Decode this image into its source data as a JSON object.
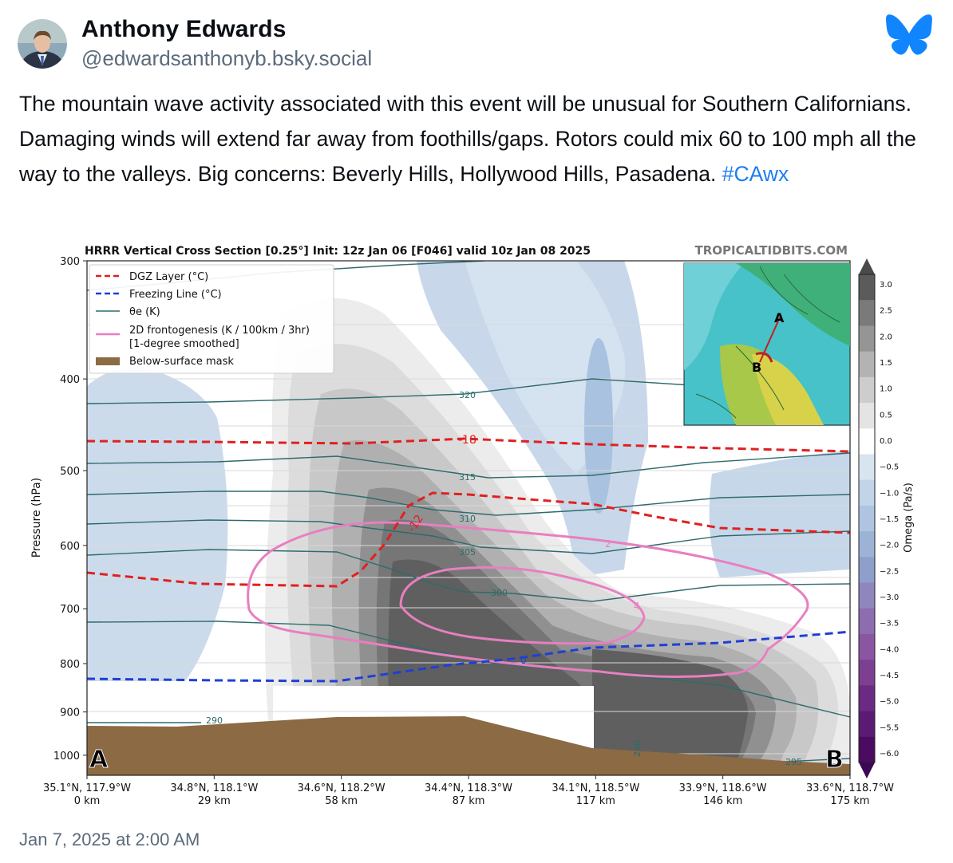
{
  "author": {
    "name": "Anthony Edwards",
    "handle": "@edwardsanthonyb.bsky.social"
  },
  "post": {
    "text": "The mountain wave activity associated with this event will be unusual for Southern Californians. Damaging winds will extend far away from foothills/gaps. Rotors could mix 60 to 100 mph all the way to the valleys. Big concerns: Beverly Hills, Hollywood Hills, Pasadena.",
    "hashtag": "#CAwx",
    "timestamp": "Jan 7, 2025 at 2:00 AM"
  },
  "icons": {
    "logo": "bluesky-butterfly-icon",
    "avatar": "profile-photo"
  },
  "colors": {
    "accent": "#1d7ef0",
    "muted": "#5b6b7b",
    "mask": "#8b6a44",
    "dgz": "#e02020",
    "freezing": "#1f3fd6",
    "thetae": "#2e6b6b",
    "frontogenesis": "#e87fc0"
  },
  "chart_data": {
    "type": "heatmap",
    "title": "HRRR Vertical Cross Section [0.25°] Init: 12z Jan 06 [F046] valid 10z Jan 08 2025",
    "credit": "TROPICALTIDBITS.COM",
    "ylabel": "Pressure (hPa)",
    "ylim": [
      1050,
      300
    ],
    "yscale": "log",
    "yticks": [
      "300",
      "400",
      "500",
      "600",
      "700",
      "800",
      "900",
      "1000"
    ],
    "xticks": [
      {
        "coord": "35.1°N, 117.9°W",
        "dist": "0 km"
      },
      {
        "coord": "34.8°N, 118.1°W",
        "dist": "29 km"
      },
      {
        "coord": "34.6°N, 118.2°W",
        "dist": "58 km"
      },
      {
        "coord": "34.4°N, 118.3°W",
        "dist": "87 km"
      },
      {
        "coord": "34.1°N, 118.5°W",
        "dist": "117 km"
      },
      {
        "coord": "33.9°N, 118.6°W",
        "dist": "146 km"
      },
      {
        "coord": "33.6°N, 118.7°W",
        "dist": "175 km"
      }
    ],
    "legend": [
      "DGZ Layer (°C)",
      "Freezing Line (°C)",
      "θe (K)",
      "2D frontogenesis (K / 100km / 3hr)",
      "[1-degree smoothed]",
      "Below-surface mask"
    ],
    "legend_position": "top-left",
    "colorbar": {
      "label": "Omega (Pa/s)",
      "ticks": [
        "3.0",
        "2.5",
        "2.0",
        "1.5",
        "1.0",
        "0.5",
        "0.0",
        "−0.5",
        "−1.0",
        "−1.5",
        "−2.0",
        "−2.5",
        "−3.0",
        "−3.5",
        "−4.0",
        "−4.5",
        "−5.0",
        "−5.5",
        "−6.0"
      ]
    },
    "contour_labels": {
      "dgz": [
        "-18",
        "-12"
      ],
      "freezing": [
        "0"
      ],
      "thetae": [
        "320",
        "315",
        "310",
        "305",
        "300",
        "290",
        "290",
        "295"
      ],
      "frontogenesis": [
        "2",
        "4"
      ]
    },
    "endpoints": [
      "A",
      "B"
    ],
    "inset_labels": [
      "A",
      "B"
    ]
  }
}
